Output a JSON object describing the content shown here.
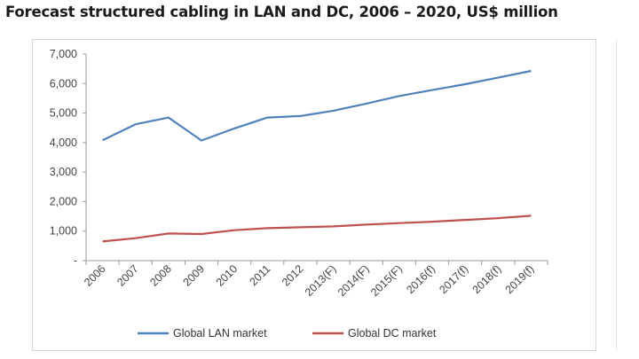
{
  "title": "Forecast structured cabling in LAN and DC, 2006 – 2020, US$ million",
  "chart_data": {
    "type": "line",
    "title": "Forecast structured cabling in LAN and DC, 2006 – 2020, US$ million",
    "xlabel": "",
    "ylabel": "",
    "categories": [
      "2006",
      "2007",
      "2008",
      "2009",
      "2010",
      "2011",
      "2012",
      "2013(F)",
      "2014(F)",
      "2015(F)",
      "2016(f)",
      "2017(f)",
      "2018(f)",
      "2019(f)"
    ],
    "y_tick_labels": [
      "-",
      "1,000",
      "2,000",
      "3,000",
      "4,000",
      "5,000",
      "6,000",
      "7,000"
    ],
    "y_ticks": [
      0,
      1000,
      2000,
      3000,
      4000,
      5000,
      6000,
      7000
    ],
    "ylim": [
      0,
      7000
    ],
    "grid": false,
    "legend_position": "bottom",
    "series": [
      {
        "name": "Global LAN market",
        "color": "#4f81bd",
        "values": [
          4080,
          4620,
          4850,
          4070,
          4480,
          4850,
          4900,
          5080,
          5320,
          5580,
          5780,
          5980,
          6200,
          6430
        ]
      },
      {
        "name": "Global DC market",
        "color": "#c0504d",
        "values": [
          650,
          760,
          920,
          900,
          1030,
          1100,
          1130,
          1160,
          1220,
          1270,
          1320,
          1380,
          1440,
          1520
        ]
      }
    ]
  }
}
